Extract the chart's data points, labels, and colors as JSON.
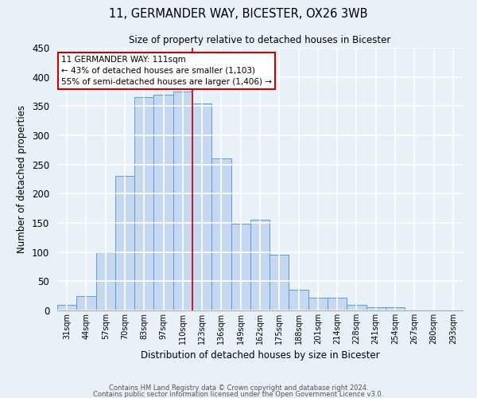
{
  "title1": "11, GERMANDER WAY, BICESTER, OX26 3WB",
  "title2": "Size of property relative to detached houses in Bicester",
  "xlabel": "Distribution of detached houses by size in Bicester",
  "ylabel": "Number of detached properties",
  "bin_labels": [
    "31sqm",
    "44sqm",
    "57sqm",
    "70sqm",
    "83sqm",
    "97sqm",
    "110sqm",
    "123sqm",
    "136sqm",
    "149sqm",
    "162sqm",
    "175sqm",
    "188sqm",
    "201sqm",
    "214sqm",
    "228sqm",
    "241sqm",
    "254sqm",
    "267sqm",
    "280sqm",
    "293sqm"
  ],
  "bar_heights": [
    10,
    25,
    100,
    230,
    365,
    370,
    375,
    355,
    260,
    148,
    155,
    95,
    35,
    22,
    22,
    10,
    5,
    5,
    2,
    2,
    2
  ],
  "bar_color": "#c5d8f0",
  "bar_edge_color": "#5b9bd5",
  "ylim": [
    0,
    450
  ],
  "yticks": [
    0,
    50,
    100,
    150,
    200,
    250,
    300,
    350,
    400,
    450
  ],
  "marker_bin_index": 6,
  "annotation_line1": "11 GERMANDER WAY: 111sqm",
  "annotation_line2": "← 43% of detached houses are smaller (1,103)",
  "annotation_line3": "55% of semi-detached houses are larger (1,406) →",
  "footer_line1": "Contains HM Land Registry data © Crown copyright and database right 2024.",
  "footer_line2": "Contains public sector information licensed under the Open Government Licence v3.0.",
  "background_color": "#e8f0f8",
  "plot_bg_color": "#e8f0f8",
  "grid_color": "#ffffff",
  "marker_line_color": "#cc0000"
}
